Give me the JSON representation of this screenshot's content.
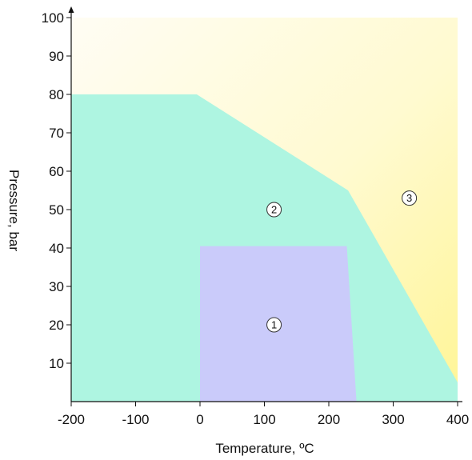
{
  "chart_data": {
    "type": "area",
    "xlabel": "Temperature, ºC",
    "ylabel": "Pressure, bar",
    "xlim": [
      -200,
      400
    ],
    "ylim": [
      0,
      100
    ],
    "x_ticks": [
      -200,
      -100,
      0,
      100,
      200,
      300,
      400
    ],
    "y_ticks": [
      10,
      20,
      30,
      40,
      50,
      60,
      70,
      80,
      90,
      100
    ],
    "grid": false,
    "regions": [
      {
        "label": "3",
        "color": "#fff8a0",
        "fill": "gradient",
        "polygon": [
          [
            -200,
            100
          ],
          [
            400,
            100
          ],
          [
            400,
            0
          ],
          [
            -200,
            0
          ]
        ],
        "marker": [
          325,
          53
        ]
      },
      {
        "label": "2",
        "color": "#aef5e1",
        "polygon": [
          [
            -200,
            80
          ],
          [
            -5,
            80
          ],
          [
            230,
            55
          ],
          [
            400,
            5
          ],
          [
            400,
            0
          ],
          [
            -200,
            0
          ]
        ],
        "marker": [
          115,
          50
        ]
      },
      {
        "label": "1",
        "color": "#cacbfa",
        "polygon": [
          [
            0,
            40.5
          ],
          [
            228,
            40.5
          ],
          [
            243,
            0
          ],
          [
            0,
            0
          ]
        ],
        "marker": [
          115,
          20
        ]
      }
    ]
  }
}
